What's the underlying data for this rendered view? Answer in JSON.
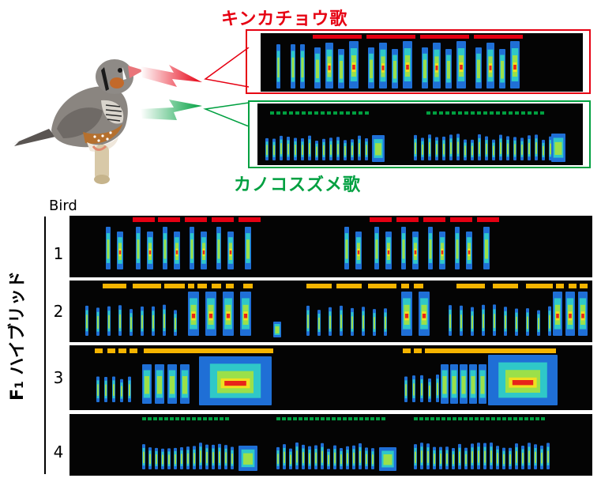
{
  "zebra_finch_label": "キンカチョウ歌",
  "munia_label": "カノコスズメ歌",
  "bird_header": "Bird",
  "f1_prefix": "F",
  "f1_sub": "1",
  "f1_suffix": " ハイブリッド",
  "rows": [
    "1",
    "2",
    "3",
    "4"
  ],
  "colors": {
    "zebra": "#e60012",
    "munia": "#00a040",
    "hybrid": "#f5b400",
    "spectrogram_bg": "#040404"
  }
}
